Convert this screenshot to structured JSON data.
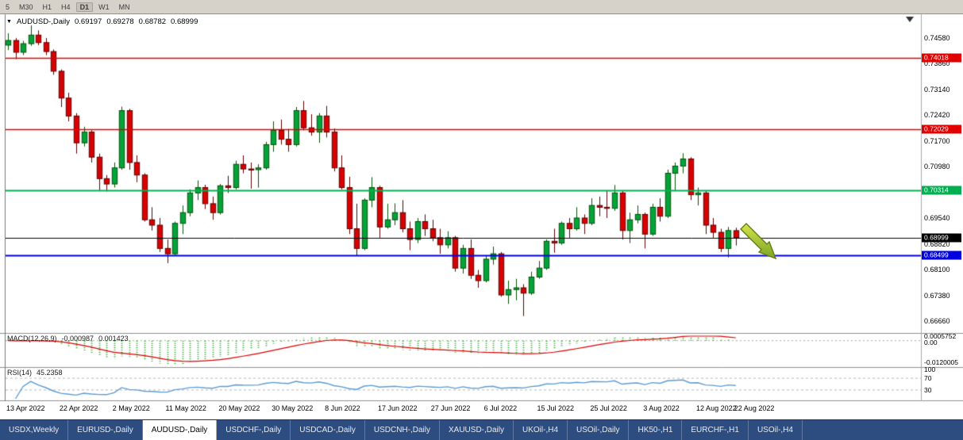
{
  "toolbar": {
    "periods": [
      "5",
      "M30",
      "H1",
      "H4",
      "D1",
      "W1",
      "MN"
    ],
    "active": "D1"
  },
  "header": {
    "title": "AUDUSD-,Daily",
    "open": "0.69197",
    "high": "0.69278",
    "low": "0.68782",
    "close": "0.68999"
  },
  "colors": {
    "up": "#00a43a",
    "up_border": "#045004",
    "down": "#d80000",
    "down_border": "#5a0000",
    "macd_hist": "#2fae2f",
    "macd_signal": "#e00000",
    "rsi_line": "#5b9bd5",
    "level_dash": "#b5b5b5",
    "splitter": "#8f8f8f",
    "axis_line": "#a8a8a8",
    "arrow": "#9acd32"
  },
  "chart_data": {
    "type": "candlestick",
    "symbol": "AUDUSD-",
    "timeframe": "Daily",
    "ohlc_display": {
      "open": 0.69197,
      "high": 0.69278,
      "low": 0.68782,
      "close": 0.68999
    },
    "ylim": [
      0.6636,
      0.7502
    ],
    "y_ticks": [
      0.7458,
      0.7386,
      0.7314,
      0.7242,
      0.717,
      0.7098,
      0.7026,
      0.6954,
      0.6882,
      0.681,
      0.6738,
      0.6666
    ],
    "x_labels": [
      {
        "text": "13 Apr 2022",
        "bar": 0
      },
      {
        "text": "22 Apr 2022",
        "bar": 7
      },
      {
        "text": "2 May 2022",
        "bar": 14
      },
      {
        "text": "11 May 2022",
        "bar": 21
      },
      {
        "text": "20 May 2022",
        "bar": 28
      },
      {
        "text": "30 May 2022",
        "bar": 35
      },
      {
        "text": "8 Jun 2022",
        "bar": 42
      },
      {
        "text": "17 Jun 2022",
        "bar": 49
      },
      {
        "text": "27 Jun 2022",
        "bar": 56
      },
      {
        "text": "6 Jul 2022",
        "bar": 63
      },
      {
        "text": "15 Jul 2022",
        "bar": 70
      },
      {
        "text": "25 Jul 2022",
        "bar": 77
      },
      {
        "text": "3 Aug 2022",
        "bar": 84
      },
      {
        "text": "12 Aug 2022",
        "bar": 91
      },
      {
        "text": "22 Aug 2022",
        "bar": 96
      }
    ],
    "horizontal_lines": [
      {
        "value": 0.74018,
        "label": "0.74018",
        "color": "#e00000",
        "width": 1.3
      },
      {
        "value": 0.72029,
        "label": "0.72029",
        "color": "#e00000",
        "width": 1.3
      },
      {
        "value": 0.70314,
        "label": "0.70314",
        "color": "#00b050",
        "width": 1.8
      },
      {
        "value": 0.68999,
        "label": "0.68999",
        "color": "#000000",
        "width": 1.0
      },
      {
        "value": 0.68499,
        "label": "0.68499",
        "color": "#0000e0",
        "width": 1.8
      }
    ],
    "candles": [
      [
        0.7438,
        0.7471,
        0.7424,
        0.7451
      ],
      [
        0.7451,
        0.7458,
        0.7399,
        0.7418
      ],
      [
        0.7418,
        0.745,
        0.741,
        0.7442
      ],
      [
        0.7442,
        0.7493,
        0.7436,
        0.7466
      ],
      [
        0.7466,
        0.7479,
        0.7438,
        0.7445
      ],
      [
        0.7445,
        0.7458,
        0.741,
        0.742
      ],
      [
        0.742,
        0.7426,
        0.7355,
        0.7365
      ],
      [
        0.7365,
        0.737,
        0.7265,
        0.729
      ],
      [
        0.729,
        0.7305,
        0.7225,
        0.724
      ],
      [
        0.724,
        0.7248,
        0.7135,
        0.7165
      ],
      [
        0.7165,
        0.721,
        0.7155,
        0.7195
      ],
      [
        0.7195,
        0.72,
        0.711,
        0.7125
      ],
      [
        0.7125,
        0.7135,
        0.703,
        0.7065
      ],
      [
        0.7065,
        0.7075,
        0.7029,
        0.705
      ],
      [
        0.705,
        0.711,
        0.704,
        0.7095
      ],
      [
        0.7095,
        0.7266,
        0.709,
        0.7255
      ],
      [
        0.7255,
        0.726,
        0.709,
        0.711
      ],
      [
        0.711,
        0.713,
        0.7055,
        0.7075
      ],
      [
        0.7075,
        0.708,
        0.6945,
        0.695
      ],
      [
        0.695,
        0.6985,
        0.692,
        0.6935
      ],
      [
        0.6935,
        0.6955,
        0.686,
        0.687
      ],
      [
        0.687,
        0.6895,
        0.6829,
        0.6855
      ],
      [
        0.6855,
        0.6945,
        0.685,
        0.694
      ],
      [
        0.694,
        0.699,
        0.691,
        0.697
      ],
      [
        0.697,
        0.7035,
        0.696,
        0.7025
      ],
      [
        0.7025,
        0.706,
        0.7005,
        0.704
      ],
      [
        0.704,
        0.7048,
        0.698,
        0.6995
      ],
      [
        0.6995,
        0.7015,
        0.695,
        0.697
      ],
      [
        0.697,
        0.705,
        0.6965,
        0.7045
      ],
      [
        0.7045,
        0.7073,
        0.7025,
        0.704
      ],
      [
        0.704,
        0.7115,
        0.7035,
        0.7105
      ],
      [
        0.7105,
        0.713,
        0.708,
        0.7092
      ],
      [
        0.7092,
        0.711,
        0.7037,
        0.709
      ],
      [
        0.709,
        0.7105,
        0.704,
        0.7095
      ],
      [
        0.7095,
        0.7168,
        0.709,
        0.716
      ],
      [
        0.716,
        0.7225,
        0.714,
        0.72
      ],
      [
        0.72,
        0.723,
        0.716,
        0.7175
      ],
      [
        0.7175,
        0.7204,
        0.714,
        0.716
      ],
      [
        0.716,
        0.7265,
        0.7155,
        0.7255
      ],
      [
        0.7255,
        0.7282,
        0.72,
        0.7207
      ],
      [
        0.7207,
        0.7245,
        0.7185,
        0.7195
      ],
      [
        0.7195,
        0.7248,
        0.7165,
        0.724
      ],
      [
        0.724,
        0.7268,
        0.718,
        0.7195
      ],
      [
        0.7195,
        0.7205,
        0.7085,
        0.7095
      ],
      [
        0.7095,
        0.713,
        0.7035,
        0.704
      ],
      [
        0.704,
        0.707,
        0.691,
        0.6925
      ],
      [
        0.6925,
        0.6995,
        0.685,
        0.687
      ],
      [
        0.687,
        0.701,
        0.6865,
        0.7005
      ],
      [
        0.7005,
        0.7069,
        0.6985,
        0.704
      ],
      [
        0.704,
        0.7045,
        0.69,
        0.693
      ],
      [
        0.693,
        0.6995,
        0.6925,
        0.695
      ],
      [
        0.695,
        0.6996,
        0.6935,
        0.697
      ],
      [
        0.697,
        0.7005,
        0.6915,
        0.6925
      ],
      [
        0.6925,
        0.6945,
        0.6865,
        0.6895
      ],
      [
        0.6895,
        0.6955,
        0.6885,
        0.6945
      ],
      [
        0.6945,
        0.6965,
        0.6905,
        0.6925
      ],
      [
        0.6925,
        0.695,
        0.689,
        0.69
      ],
      [
        0.69,
        0.6925,
        0.6855,
        0.688
      ],
      [
        0.688,
        0.6918,
        0.687,
        0.69
      ],
      [
        0.69,
        0.6905,
        0.6805,
        0.6815
      ],
      [
        0.6815,
        0.688,
        0.68,
        0.687
      ],
      [
        0.687,
        0.6895,
        0.6785,
        0.6795
      ],
      [
        0.6795,
        0.681,
        0.676,
        0.678
      ],
      [
        0.678,
        0.685,
        0.6775,
        0.684
      ],
      [
        0.684,
        0.6875,
        0.6825,
        0.6855
      ],
      [
        0.6855,
        0.686,
        0.6735,
        0.674
      ],
      [
        0.674,
        0.678,
        0.6715,
        0.6755
      ],
      [
        0.6755,
        0.6785,
        0.6725,
        0.676
      ],
      [
        0.676,
        0.677,
        0.6681,
        0.6745
      ],
      [
        0.6745,
        0.6805,
        0.674,
        0.679
      ],
      [
        0.679,
        0.6835,
        0.6785,
        0.6815
      ],
      [
        0.6815,
        0.6895,
        0.681,
        0.689
      ],
      [
        0.689,
        0.6925,
        0.6858,
        0.6885
      ],
      [
        0.6885,
        0.6945,
        0.688,
        0.694
      ],
      [
        0.694,
        0.6955,
        0.69,
        0.6925
      ],
      [
        0.6925,
        0.6985,
        0.692,
        0.6955
      ],
      [
        0.6955,
        0.6965,
        0.691,
        0.694
      ],
      [
        0.694,
        0.701,
        0.6935,
        0.699
      ],
      [
        0.699,
        0.7015,
        0.696,
        0.6985
      ],
      [
        0.6985,
        0.7032,
        0.6955,
        0.6982
      ],
      [
        0.6982,
        0.7047,
        0.6975,
        0.7025
      ],
      [
        0.7025,
        0.703,
        0.6895,
        0.692
      ],
      [
        0.692,
        0.697,
        0.6885,
        0.695
      ],
      [
        0.695,
        0.699,
        0.694,
        0.6965
      ],
      [
        0.6965,
        0.697,
        0.687,
        0.691
      ],
      [
        0.691,
        0.6995,
        0.6905,
        0.6985
      ],
      [
        0.6985,
        0.701,
        0.6945,
        0.696
      ],
      [
        0.696,
        0.709,
        0.6955,
        0.708
      ],
      [
        0.708,
        0.711,
        0.703,
        0.71
      ],
      [
        0.71,
        0.7136,
        0.708,
        0.712
      ],
      [
        0.712,
        0.7125,
        0.7005,
        0.702
      ],
      [
        0.702,
        0.704,
        0.699,
        0.7025
      ],
      [
        0.7025,
        0.703,
        0.691,
        0.6935
      ],
      [
        0.6935,
        0.6955,
        0.69,
        0.6915
      ],
      [
        0.6915,
        0.6925,
        0.686,
        0.687
      ],
      [
        0.687,
        0.693,
        0.6845,
        0.692
      ],
      [
        0.69197,
        0.69278,
        0.68782,
        0.68999
      ]
    ],
    "indicators": [
      {
        "name": "MACD",
        "label": "MACD(12,26,9)",
        "params": [
          12,
          26,
          9
        ],
        "main_value": "-0.000987",
        "signal_value": "0.001423",
        "axis_labels": [
          "0.0005752",
          "0.00",
          "-0.0120005"
        ]
      },
      {
        "name": "RSI",
        "label": "RSI(14)",
        "params": [
          14
        ],
        "value": "45.2358",
        "axis_labels": [
          "100",
          "70",
          "30"
        ],
        "levels": [
          70,
          30
        ]
      }
    ],
    "annotation": {
      "type": "down-right-arrow",
      "color": "#9acd32",
      "near_bar": 96
    }
  },
  "tabs": {
    "active_index": 2,
    "items": [
      "USDX,Weekly",
      "EURUSD-,Daily",
      "AUDUSD-,Daily",
      "USDCHF-,Daily",
      "USDCAD-,Daily",
      "USDCNH-,Daily",
      "XAUUSD-,Daily",
      "UKOil-,H4",
      "USOil-,Daily",
      "HK50-,H1",
      "EURCHF-,H1",
      "USOil-,H4"
    ]
  }
}
